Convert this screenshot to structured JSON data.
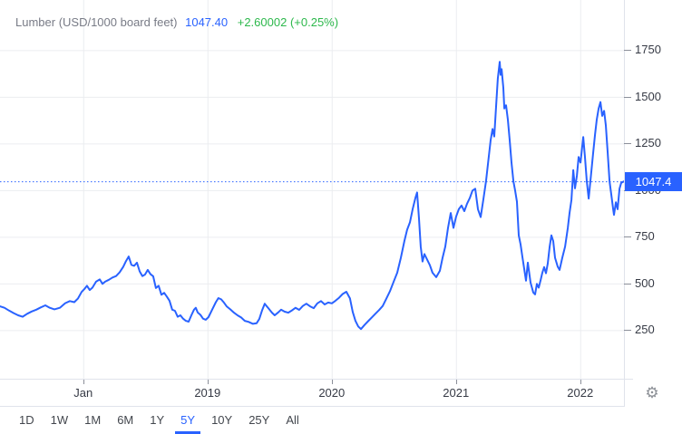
{
  "header": {
    "symbol_label": "Lumber (USD/1000 board feet)",
    "price": "1047.40",
    "change": "+2.60002",
    "change_percent": "(+0.25%)"
  },
  "colors": {
    "line_blue": "#2962ff",
    "badge_bg": "#2962ff",
    "badge_text": "#ffffff",
    "change_green": "#2db84c",
    "symbol_gray": "#787b86",
    "grid_gray": "#ebedf0",
    "axis_text": "#363a45"
  },
  "icons": {
    "settings": "gear-icon",
    "settings_glyph": "⚙"
  },
  "toolbar": {
    "ranges": [
      "1D",
      "1W",
      "1M",
      "6M",
      "1Y",
      "5Y",
      "10Y",
      "25Y",
      "All"
    ],
    "active_range": "5Y"
  },
  "chart_data": {
    "type": "line",
    "title": "Lumber (USD/1000 board feet)",
    "xlabel": "",
    "ylabel": "USD per 1000 board feet",
    "legend_position": "none",
    "grid": true,
    "current_price": 1047.4,
    "price_scale_label": "1047.4",
    "x_range": [
      2017.33,
      2022.352
    ],
    "ylim": [
      -10,
      2019
    ],
    "y_ticks": [
      250,
      500,
      750,
      1000,
      1250,
      1500,
      1750
    ],
    "x_ticks": [
      {
        "t": 2018.0,
        "label": "Jan"
      },
      {
        "t": 2019.0,
        "label": "2019"
      },
      {
        "t": 2020.0,
        "label": "2020"
      },
      {
        "t": 2021.0,
        "label": "2021"
      },
      {
        "t": 2022.0,
        "label": "2022"
      }
    ],
    "points": [
      [
        2017.33,
        378
      ],
      [
        2017.366,
        370
      ],
      [
        2017.403,
        355
      ],
      [
        2017.439,
        342
      ],
      [
        2017.476,
        330
      ],
      [
        2017.512,
        322
      ],
      [
        2017.549,
        338
      ],
      [
        2017.585,
        350
      ],
      [
        2017.622,
        360
      ],
      [
        2017.658,
        372
      ],
      [
        2017.695,
        383
      ],
      [
        2017.731,
        370
      ],
      [
        2017.768,
        362
      ],
      [
        2017.812,
        370
      ],
      [
        2017.855,
        395
      ],
      [
        2017.892,
        406
      ],
      [
        2017.928,
        400
      ],
      [
        2017.958,
        420
      ],
      [
        2017.987,
        455
      ],
      [
        2018.009,
        470
      ],
      [
        2018.03,
        488
      ],
      [
        2018.052,
        465
      ],
      [
        2018.074,
        478
      ],
      [
        2018.103,
        510
      ],
      [
        2018.133,
        522
      ],
      [
        2018.155,
        498
      ],
      [
        2018.176,
        510
      ],
      [
        2018.206,
        520
      ],
      [
        2018.235,
        532
      ],
      [
        2018.264,
        540
      ],
      [
        2018.293,
        560
      ],
      [
        2018.322,
        590
      ],
      [
        2018.344,
        620
      ],
      [
        2018.366,
        645
      ],
      [
        2018.388,
        600
      ],
      [
        2018.41,
        595
      ],
      [
        2018.432,
        612
      ],
      [
        2018.454,
        565
      ],
      [
        2018.476,
        540
      ],
      [
        2018.497,
        548
      ],
      [
        2018.519,
        573
      ],
      [
        2018.541,
        550
      ],
      [
        2018.563,
        539
      ],
      [
        2018.585,
        476
      ],
      [
        2018.607,
        488
      ],
      [
        2018.629,
        440
      ],
      [
        2018.651,
        450
      ],
      [
        2018.673,
        430
      ],
      [
        2018.694,
        408
      ],
      [
        2018.716,
        360
      ],
      [
        2018.738,
        354
      ],
      [
        2018.76,
        322
      ],
      [
        2018.782,
        330
      ],
      [
        2018.804,
        312
      ],
      [
        2018.826,
        300
      ],
      [
        2018.848,
        296
      ],
      [
        2018.87,
        330
      ],
      [
        2018.891,
        360
      ],
      [
        2018.906,
        370
      ],
      [
        2018.921,
        345
      ],
      [
        2018.943,
        332
      ],
      [
        2018.964,
        312
      ],
      [
        2018.986,
        306
      ],
      [
        2019.008,
        320
      ],
      [
        2019.037,
        360
      ],
      [
        2019.067,
        400
      ],
      [
        2019.088,
        422
      ],
      [
        2019.11,
        415
      ],
      [
        2019.132,
        398
      ],
      [
        2019.154,
        378
      ],
      [
        2019.183,
        362
      ],
      [
        2019.213,
        344
      ],
      [
        2019.242,
        330
      ],
      [
        2019.271,
        318
      ],
      [
        2019.3,
        300
      ],
      [
        2019.329,
        295
      ],
      [
        2019.366,
        284
      ],
      [
        2019.395,
        287
      ],
      [
        2019.417,
        310
      ],
      [
        2019.439,
        355
      ],
      [
        2019.461,
        392
      ],
      [
        2019.475,
        380
      ],
      [
        2019.49,
        368
      ],
      [
        2019.519,
        344
      ],
      [
        2019.541,
        330
      ],
      [
        2019.57,
        346
      ],
      [
        2019.592,
        360
      ],
      [
        2019.621,
        349
      ],
      [
        2019.65,
        344
      ],
      [
        2019.68,
        356
      ],
      [
        2019.709,
        370
      ],
      [
        2019.738,
        359
      ],
      [
        2019.767,
        380
      ],
      [
        2019.796,
        392
      ],
      [
        2019.826,
        378
      ],
      [
        2019.855,
        368
      ],
      [
        2019.884,
        394
      ],
      [
        2019.913,
        406
      ],
      [
        2019.943,
        388
      ],
      [
        2019.972,
        398
      ],
      [
        2020.001,
        394
      ],
      [
        2020.03,
        408
      ],
      [
        2020.059,
        424
      ],
      [
        2020.088,
        444
      ],
      [
        2020.118,
        456
      ],
      [
        2020.147,
        420
      ],
      [
        2020.169,
        348
      ],
      [
        2020.191,
        300
      ],
      [
        2020.213,
        270
      ],
      [
        2020.235,
        256
      ],
      [
        2020.264,
        278
      ],
      [
        2020.293,
        298
      ],
      [
        2020.322,
        318
      ],
      [
        2020.351,
        338
      ],
      [
        2020.381,
        358
      ],
      [
        2020.41,
        380
      ],
      [
        2020.439,
        418
      ],
      [
        2020.468,
        458
      ],
      [
        2020.497,
        508
      ],
      [
        2020.527,
        558
      ],
      [
        2020.556,
        638
      ],
      [
        2020.585,
        728
      ],
      [
        2020.607,
        788
      ],
      [
        2020.629,
        828
      ],
      [
        2020.651,
        898
      ],
      [
        2020.673,
        958
      ],
      [
        2020.687,
        988
      ],
      [
        2020.702,
        848
      ],
      [
        2020.716,
        698
      ],
      [
        2020.731,
        618
      ],
      [
        2020.746,
        658
      ],
      [
        2020.768,
        628
      ],
      [
        2020.79,
        598
      ],
      [
        2020.811,
        558
      ],
      [
        2020.841,
        534
      ],
      [
        2020.87,
        568
      ],
      [
        2020.892,
        638
      ],
      [
        2020.914,
        698
      ],
      [
        2020.936,
        798
      ],
      [
        2020.958,
        878
      ],
      [
        2020.98,
        798
      ],
      [
        2021.001,
        858
      ],
      [
        2021.023,
        898
      ],
      [
        2021.045,
        918
      ],
      [
        2021.067,
        888
      ],
      [
        2021.089,
        928
      ],
      [
        2021.111,
        958
      ],
      [
        2021.133,
        998
      ],
      [
        2021.155,
        1008
      ],
      [
        2021.177,
        898
      ],
      [
        2021.199,
        856
      ],
      [
        2021.22,
        948
      ],
      [
        2021.242,
        1048
      ],
      [
        2021.264,
        1178
      ],
      [
        2021.279,
        1268
      ],
      [
        2021.294,
        1328
      ],
      [
        2021.308,
        1288
      ],
      [
        2021.323,
        1448
      ],
      [
        2021.337,
        1598
      ],
      [
        2021.352,
        1688
      ],
      [
        2021.359,
        1618
      ],
      [
        2021.367,
        1648
      ],
      [
        2021.381,
        1548
      ],
      [
        2021.389,
        1438
      ],
      [
        2021.403,
        1455
      ],
      [
        2021.418,
        1378
      ],
      [
        2021.432,
        1268
      ],
      [
        2021.447,
        1148
      ],
      [
        2021.462,
        1048
      ],
      [
        2021.476,
        998
      ],
      [
        2021.491,
        938
      ],
      [
        2021.505,
        758
      ],
      [
        2021.52,
        710
      ],
      [
        2021.535,
        640
      ],
      [
        2021.564,
        515
      ],
      [
        2021.578,
        612
      ],
      [
        2021.6,
        505
      ],
      [
        2021.622,
        452
      ],
      [
        2021.637,
        442
      ],
      [
        2021.651,
        498
      ],
      [
        2021.666,
        478
      ],
      [
        2021.681,
        518
      ],
      [
        2021.695,
        558
      ],
      [
        2021.71,
        588
      ],
      [
        2021.724,
        555
      ],
      [
        2021.739,
        608
      ],
      [
        2021.754,
        698
      ],
      [
        2021.768,
        758
      ],
      [
        2021.783,
        728
      ],
      [
        2021.797,
        638
      ],
      [
        2021.819,
        590
      ],
      [
        2021.834,
        573
      ],
      [
        2021.856,
        638
      ],
      [
        2021.878,
        698
      ],
      [
        2021.9,
        798
      ],
      [
        2021.914,
        878
      ],
      [
        2021.929,
        948
      ],
      [
        2021.944,
        1108
      ],
      [
        2021.958,
        1010
      ],
      [
        2021.973,
        1078
      ],
      [
        2021.987,
        1178
      ],
      [
        2022.002,
        1148
      ],
      [
        2022.024,
        1285
      ],
      [
        2022.038,
        1178
      ],
      [
        2022.053,
        1048
      ],
      [
        2022.068,
        955
      ],
      [
        2022.089,
        1098
      ],
      [
        2022.104,
        1198
      ],
      [
        2022.119,
        1298
      ],
      [
        2022.133,
        1378
      ],
      [
        2022.148,
        1438
      ],
      [
        2022.163,
        1472
      ],
      [
        2022.177,
        1398
      ],
      [
        2022.192,
        1425
      ],
      [
        2022.206,
        1348
      ],
      [
        2022.221,
        1198
      ],
      [
        2022.236,
        1048
      ],
      [
        2022.25,
        978
      ],
      [
        2022.265,
        898
      ],
      [
        2022.272,
        868
      ],
      [
        2022.287,
        935
      ],
      [
        2022.301,
        898
      ],
      [
        2022.316,
        1008
      ],
      [
        2022.33,
        1040
      ],
      [
        2022.352,
        1047.4
      ]
    ]
  }
}
